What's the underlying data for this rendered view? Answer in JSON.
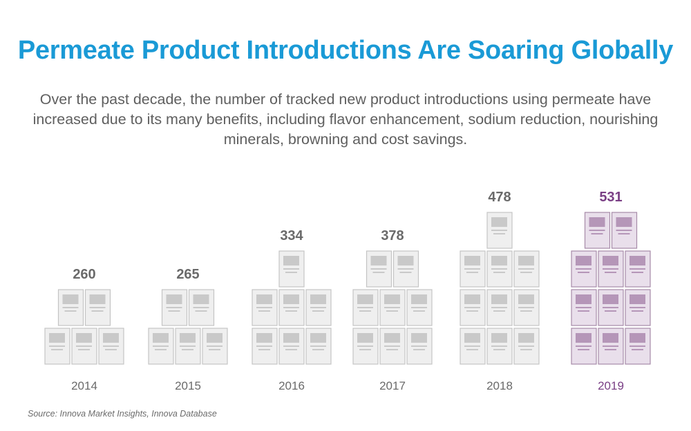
{
  "title": "Permeate Product Introductions Are Soaring Globally",
  "subtitle": "Over the past decade, the number of tracked new product introductions using permeate have increased due to its many benefits, including flavor enhancement, sodium reduction, nourishing minerals, browning and cost savings.",
  "source": "Source: Innova Market Insights, Innova Database",
  "colors": {
    "title": "#1a9ad6",
    "muted_text": "#6b6b6b",
    "box_fill": "#efefef",
    "box_stroke": "#c4c4c4",
    "box_icon": "#c9c9c9",
    "highlight_fill": "#e9dfeb",
    "highlight_stroke": "#a68aa8",
    "highlight_icon": "#b596b8",
    "highlight_text": "#7a3f85"
  },
  "chart_data": {
    "type": "pictograph",
    "categories": [
      "2014",
      "2015",
      "2016",
      "2017",
      "2018",
      "2019"
    ],
    "values": [
      260,
      265,
      334,
      378,
      478,
      531
    ],
    "icons_per_row": [
      [
        3,
        2
      ],
      [
        3,
        2
      ],
      [
        3,
        3,
        1
      ],
      [
        3,
        3,
        2
      ],
      [
        3,
        3,
        3,
        1
      ],
      [
        3,
        3,
        3,
        2
      ]
    ],
    "highlight": "2019",
    "icon": "product-package-icon"
  }
}
